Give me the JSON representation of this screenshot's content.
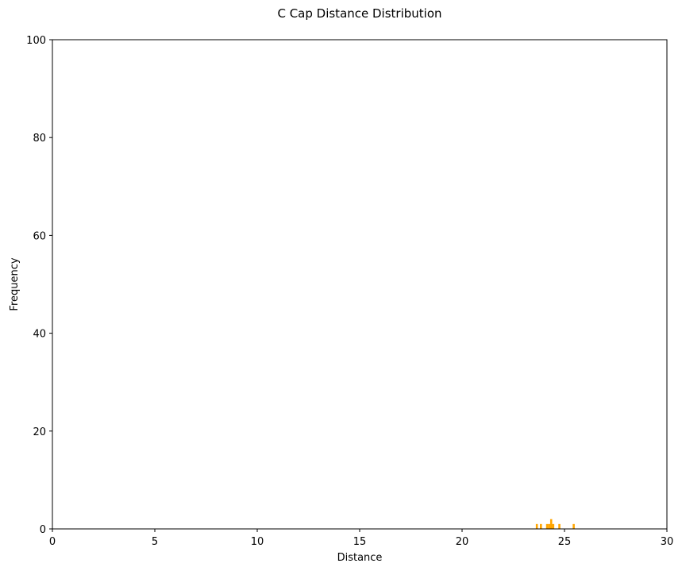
{
  "chart_data": {
    "type": "bar",
    "title": "C Cap Distance Distribution",
    "xlabel": "Distance",
    "ylabel": "Frequency",
    "xlim": [
      0,
      30
    ],
    "ylim": [
      0,
      100
    ],
    "xticks": [
      0,
      5,
      10,
      15,
      20,
      25,
      30
    ],
    "yticks": [
      0,
      20,
      40,
      60,
      80,
      100
    ],
    "grid": false,
    "bar_color": "#ffa500",
    "bin_width": 0.1,
    "bins": [
      {
        "x": 23.65,
        "count": 1
      },
      {
        "x": 23.85,
        "count": 1
      },
      {
        "x": 24.15,
        "count": 1
      },
      {
        "x": 24.25,
        "count": 1
      },
      {
        "x": 24.35,
        "count": 2
      },
      {
        "x": 24.45,
        "count": 1
      },
      {
        "x": 24.75,
        "count": 1
      },
      {
        "x": 25.45,
        "count": 1
      }
    ]
  }
}
